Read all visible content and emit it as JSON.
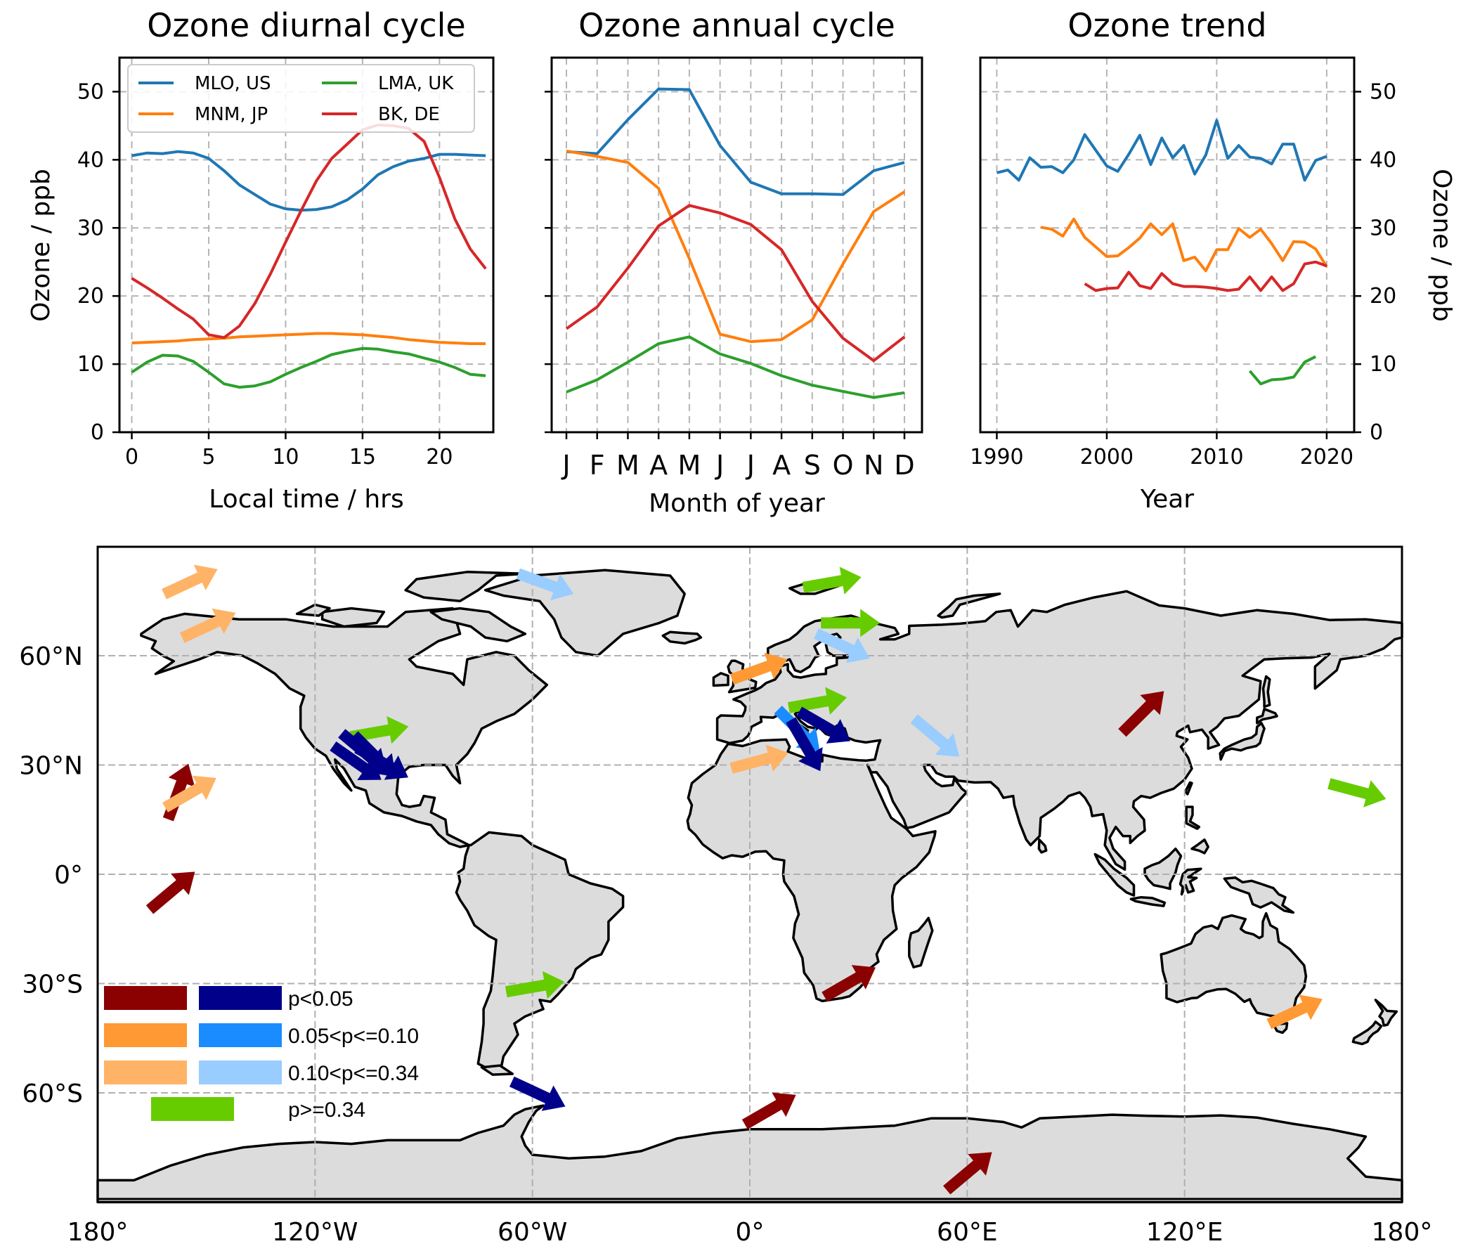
{
  "colors": {
    "MLO": "#1f77b4",
    "MNM": "#ff7f0e",
    "LMA": "#2ca02c",
    "BK": "#d62728",
    "dark_red": "#8b0000",
    "orange": "#ff9933",
    "light_orange": "#ffb366",
    "navy": "#00008b",
    "mid_blue": "#1a8cff",
    "light_blue": "#99ccff",
    "green": "#66cc00"
  },
  "chart_data": [
    {
      "type": "line",
      "title": "Ozone diurnal cycle",
      "xlabel": "Local time / hrs",
      "ylabel": "Ozone / ppb",
      "xlim": [
        -0.8,
        23.5
      ],
      "ylim": [
        0,
        55
      ],
      "xticks": [
        "0",
        "5",
        "10",
        "15",
        "20"
      ],
      "yticks": [
        "0",
        "10",
        "20",
        "30",
        "40",
        "50"
      ],
      "grid": true,
      "legend_position": "upper-left",
      "legend": [
        "MLO, US",
        "MNM, JP",
        "LMA, UK",
        "BK, DE"
      ],
      "x": [
        0,
        1,
        2,
        3,
        4,
        5,
        6,
        7,
        8,
        9,
        10,
        11,
        12,
        13,
        14,
        15,
        16,
        17,
        18,
        19,
        20,
        21,
        22,
        23
      ],
      "series": [
        {
          "name": "MLO, US",
          "color_key": "MLO",
          "values": [
            40.6,
            41.0,
            40.9,
            41.2,
            41.0,
            40.2,
            38.4,
            36.3,
            34.9,
            33.5,
            32.8,
            32.6,
            32.7,
            33.1,
            34.1,
            35.7,
            37.8,
            39.0,
            39.8,
            40.2,
            40.8,
            40.8,
            40.7,
            40.6
          ]
        },
        {
          "name": "MNM, JP",
          "color_key": "MNM",
          "values": [
            13.1,
            13.2,
            13.3,
            13.4,
            13.6,
            13.7,
            13.8,
            14.0,
            14.1,
            14.2,
            14.3,
            14.4,
            14.5,
            14.5,
            14.4,
            14.3,
            14.1,
            13.9,
            13.6,
            13.4,
            13.2,
            13.1,
            13.0,
            13.0
          ]
        },
        {
          "name": "LMA, UK",
          "color_key": "LMA",
          "values": [
            8.8,
            10.3,
            11.3,
            11.2,
            10.4,
            8.8,
            7.1,
            6.6,
            6.8,
            7.4,
            8.5,
            9.5,
            10.4,
            11.4,
            11.9,
            12.3,
            12.2,
            11.8,
            11.5,
            10.9,
            10.3,
            9.5,
            8.5,
            8.3
          ]
        },
        {
          "name": "BK, DE",
          "color_key": "BK",
          "values": [
            22.6,
            21.2,
            19.7,
            18.1,
            16.6,
            14.3,
            13.9,
            15.6,
            18.9,
            23.2,
            27.9,
            32.5,
            36.9,
            40.2,
            42.3,
            44.4,
            45.1,
            45.0,
            44.6,
            42.7,
            37.4,
            31.3,
            26.9,
            24.0
          ]
        }
      ]
    },
    {
      "type": "line",
      "title": "Ozone annual cycle",
      "xlabel": "Month of year",
      "ylim": [
        0,
        55
      ],
      "categories": [
        "J",
        "F",
        "M",
        "A",
        "M",
        "J",
        "J",
        "A",
        "S",
        "O",
        "N",
        "D"
      ],
      "grid": true,
      "series": [
        {
          "name": "MLO, US",
          "color_key": "MLO",
          "values": [
            41.2,
            40.9,
            45.9,
            50.4,
            50.3,
            42.1,
            36.7,
            35.0,
            35.0,
            34.9,
            38.4,
            39.6
          ]
        },
        {
          "name": "MNM, JP",
          "color_key": "MNM",
          "values": [
            41.3,
            40.5,
            39.6,
            35.8,
            25.5,
            14.4,
            13.3,
            13.6,
            16.5,
            24.7,
            32.4,
            35.3
          ]
        },
        {
          "name": "LMA, UK",
          "color_key": "LMA",
          "values": [
            5.9,
            7.7,
            10.3,
            13.0,
            14.0,
            11.5,
            10.1,
            8.3,
            6.9,
            6.0,
            5.1,
            5.8
          ]
        },
        {
          "name": "BK, DE",
          "color_key": "BK",
          "values": [
            15.2,
            18.4,
            24.1,
            30.3,
            33.3,
            32.2,
            30.5,
            26.8,
            19.2,
            13.8,
            10.5,
            14.0
          ]
        }
      ]
    },
    {
      "type": "line",
      "title": "Ozone trend",
      "xlabel": "Year",
      "ylabel": "Ozone / ppb",
      "xlim": [
        1988.5,
        2022.5
      ],
      "ylim": [
        0,
        55
      ],
      "xticks": [
        "1990",
        "2000",
        "2010",
        "2020"
      ],
      "yticks": [
        "0",
        "10",
        "20",
        "30",
        "40",
        "50"
      ],
      "grid": true,
      "series": [
        {
          "name": "MLO, US",
          "color_key": "MLO",
          "x": [
            1990,
            1991,
            1992,
            1993,
            1994,
            1995,
            1996,
            1997,
            1998,
            1999,
            2000,
            2001,
            2002,
            2003,
            2004,
            2005,
            2006,
            2007,
            2008,
            2009,
            2010,
            2011,
            2012,
            2013,
            2014,
            2015,
            2016,
            2017,
            2018,
            2019,
            2020
          ],
          "values": [
            38.1,
            38.5,
            37.0,
            40.3,
            38.9,
            39.0,
            38.1,
            40.0,
            43.7,
            41.4,
            39.1,
            38.3,
            40.8,
            43.6,
            39.3,
            43.2,
            40.3,
            42.1,
            37.9,
            40.7,
            45.8,
            40.2,
            42.1,
            40.4,
            40.2,
            39.4,
            42.3,
            42.3,
            37.0,
            39.9,
            40.5
          ]
        },
        {
          "name": "MNM, JP",
          "color_key": "MNM",
          "x": [
            1994,
            1995,
            1996,
            1997,
            1998,
            1999,
            2000,
            2001,
            2002,
            2003,
            2004,
            2005,
            2006,
            2007,
            2008,
            2009,
            2010,
            2011,
            2012,
            2013,
            2014,
            2015,
            2016,
            2017,
            2018,
            2019,
            2020
          ],
          "values": [
            30.1,
            29.8,
            28.8,
            31.3,
            28.6,
            27.2,
            25.8,
            25.9,
            27.1,
            28.5,
            30.6,
            29.0,
            30.6,
            25.2,
            25.7,
            23.7,
            26.8,
            26.8,
            29.9,
            28.6,
            29.8,
            27.7,
            25.2,
            28.0,
            27.9,
            26.9,
            24.3
          ]
        },
        {
          "name": "BK, DE",
          "color_key": "BK",
          "x": [
            1998,
            1999,
            2000,
            2001,
            2002,
            2003,
            2004,
            2005,
            2006,
            2007,
            2008,
            2009,
            2010,
            2011,
            2012,
            2013,
            2014,
            2015,
            2016,
            2017,
            2018,
            2019,
            2020
          ],
          "values": [
            21.8,
            20.8,
            21.1,
            21.2,
            23.5,
            21.5,
            21.1,
            23.3,
            21.8,
            21.4,
            21.4,
            21.3,
            21.1,
            20.8,
            21.0,
            22.8,
            20.8,
            22.8,
            20.8,
            21.8,
            24.7,
            25.0,
            24.4
          ]
        },
        {
          "name": "LMA, UK",
          "color_key": "LMA",
          "x": [
            2013,
            2014,
            2015,
            2016,
            2017,
            2018,
            2019
          ],
          "values": [
            9.0,
            7.1,
            7.7,
            7.8,
            8.1,
            10.3,
            11.1
          ]
        }
      ]
    },
    {
      "type": "map",
      "projection": "plate-carree",
      "xticks": [
        "180°",
        "120°W",
        "60°W",
        "0°",
        "60°E",
        "120°E",
        "180°"
      ],
      "yticks": [
        "60°N",
        "30°N",
        "0°",
        "30°S",
        "60°S"
      ],
      "grid": true,
      "legend": [
        {
          "label": "p<0.05",
          "colors": [
            "dark_red",
            "navy"
          ]
        },
        {
          "label": "0.05<p<=0.10",
          "colors": [
            "orange",
            "mid_blue"
          ]
        },
        {
          "label": "0.10<p<=0.34",
          "colors": [
            "light_orange",
            "light_blue"
          ]
        },
        {
          "label": "p>=0.34",
          "colors": [
            "green"
          ]
        }
      ],
      "arrows": [
        {
          "lon": -155,
          "lat": 80,
          "angle": 25,
          "color": "light_orange"
        },
        {
          "lon": -150,
          "lat": 68,
          "angle": 25,
          "color": "light_orange"
        },
        {
          "lon": -158,
          "lat": 22,
          "angle": 70,
          "color": "dark_red"
        },
        {
          "lon": -155,
          "lat": 22,
          "angle": 30,
          "color": "light_orange"
        },
        {
          "lon": -160,
          "lat": -5,
          "angle": 40,
          "color": "dark_red"
        },
        {
          "lon": -103,
          "lat": 39,
          "angle": 10,
          "color": "green"
        },
        {
          "lon": -107,
          "lat": 34,
          "angle": -40,
          "color": "navy"
        },
        {
          "lon": -104,
          "lat": 33,
          "angle": -45,
          "color": "navy"
        },
        {
          "lon": -109,
          "lat": 31,
          "angle": -35,
          "color": "navy"
        },
        {
          "lon": -102,
          "lat": 31,
          "angle": -30,
          "color": "navy"
        },
        {
          "lon": -60,
          "lat": -31,
          "angle": 10,
          "color": "green"
        },
        {
          "lon": -59,
          "lat": -60,
          "angle": -25,
          "color": "navy"
        },
        {
          "lon": -57,
          "lat": 80,
          "angle": -20,
          "color": "light_blue"
        },
        {
          "lon": 22,
          "lat": 80,
          "angle": 10,
          "color": "green"
        },
        {
          "lon": 27,
          "lat": 69,
          "angle": 0,
          "color": "green"
        },
        {
          "lon": 25,
          "lat": 63,
          "angle": -25,
          "color": "light_blue"
        },
        {
          "lon": 2,
          "lat": 56,
          "angle": 20,
          "color": "orange"
        },
        {
          "lon": 18,
          "lat": 47,
          "angle": 10,
          "color": "green"
        },
        {
          "lon": 13,
          "lat": 40,
          "angle": -45,
          "color": "mid_blue"
        },
        {
          "lon": 20,
          "lat": 41,
          "angle": -30,
          "color": "navy"
        },
        {
          "lon": 15,
          "lat": 36,
          "angle": -60,
          "color": "navy"
        },
        {
          "lon": 2,
          "lat": 31,
          "angle": 15,
          "color": "light_orange"
        },
        {
          "lon": 51,
          "lat": 38,
          "angle": -40,
          "color": "light_blue"
        },
        {
          "lon": 108,
          "lat": 44,
          "angle": 45,
          "color": "dark_red"
        },
        {
          "lon": 167,
          "lat": 23,
          "angle": -15,
          "color": "green"
        },
        {
          "lon": 27,
          "lat": -30,
          "angle": 30,
          "color": "dark_red"
        },
        {
          "lon": 5,
          "lat": -65,
          "angle": 30,
          "color": "dark_red"
        },
        {
          "lon": 60,
          "lat": -82,
          "angle": 40,
          "color": "dark_red"
        },
        {
          "lon": 150,
          "lat": -38,
          "angle": 25,
          "color": "orange"
        }
      ]
    }
  ]
}
